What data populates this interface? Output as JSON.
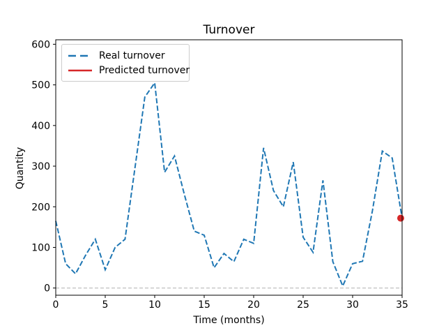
{
  "figure": {
    "title": "Turnover",
    "xlabel": "Time (months)",
    "ylabel": "Quantity"
  },
  "legend": {
    "entries": [
      {
        "label": "Real turnover",
        "color": "#1f77b4",
        "style": "dashed"
      },
      {
        "label": "Predicted turnover",
        "color": "#d62728",
        "style": "solid"
      }
    ]
  },
  "colors": {
    "real_series": "#1f77b4",
    "predicted_series": "#d62728",
    "zero_line": "#b0b0b0",
    "axis": "#000000"
  },
  "chart_data": {
    "type": "line",
    "title": "Turnover",
    "xlabel": "Time (months)",
    "ylabel": "Quantity",
    "x_ticks": [
      0,
      5,
      10,
      15,
      20,
      25,
      30,
      35
    ],
    "y_ticks": [
      0,
      100,
      200,
      300,
      400,
      500,
      600
    ],
    "xlim": [
      0,
      35
    ],
    "ylim": [
      -18,
      612
    ],
    "grid": false,
    "zero_reference_line": 0,
    "legend_position": "upper-left",
    "series": [
      {
        "name": "Real turnover",
        "color": "#1f77b4",
        "line_style": "dashed",
        "x": [
          0,
          1,
          2,
          3,
          4,
          5,
          6,
          7,
          8,
          9,
          10,
          11,
          12,
          13,
          14,
          15,
          16,
          17,
          18,
          19,
          20,
          21,
          22,
          23,
          24,
          25,
          26,
          27,
          28,
          29,
          30,
          31,
          32,
          33,
          34,
          35
        ],
        "y": [
          165,
          60,
          35,
          80,
          120,
          45,
          100,
          120,
          295,
          470,
          505,
          285,
          325,
          230,
          140,
          130,
          50,
          85,
          65,
          120,
          110,
          345,
          240,
          200,
          310,
          125,
          88,
          265,
          65,
          5,
          60,
          66,
          190,
          337,
          320,
          172
        ]
      },
      {
        "name": "Predicted turnover",
        "color": "#d62728",
        "line_style": "solid",
        "marker": "circle",
        "x": [
          35
        ],
        "y": [
          172
        ]
      }
    ]
  }
}
